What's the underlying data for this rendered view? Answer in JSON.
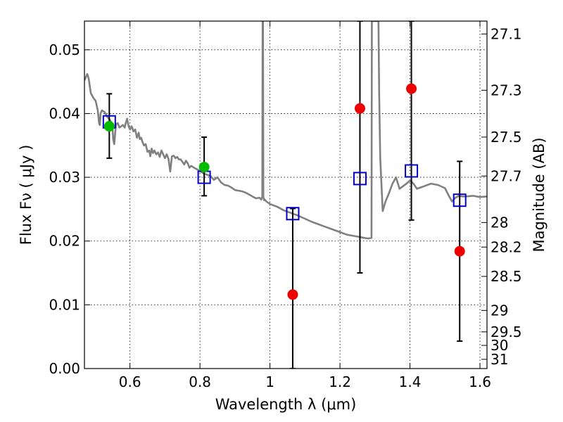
{
  "chart_data": {
    "type": "scatter",
    "title": "",
    "xlabel": "Wavelength  λ (μm)",
    "ylabel": "Flux  Fν  ( μJy )",
    "y2label": "Magnitude (AB)",
    "xlim": [
      0.47,
      1.62
    ],
    "ylim": [
      0.0,
      0.0545
    ],
    "x_ticks": [
      0.6,
      0.8,
      1.0,
      1.2,
      1.4,
      1.6
    ],
    "x_tick_labels": [
      "0.6",
      "0.8",
      "1",
      "1.2",
      "1.4",
      "1.6"
    ],
    "y_ticks": [
      0.0,
      0.01,
      0.02,
      0.03,
      0.04,
      0.05
    ],
    "y_tick_labels": [
      "0.00",
      "0.01",
      "0.02",
      "0.03",
      "0.04",
      "0.05"
    ],
    "mag_ticks": [
      27.1,
      27.3,
      27.5,
      27.7,
      28,
      28.2,
      28.5,
      29,
      29.5,
      30,
      31
    ],
    "mag_tick_labels": [
      "27.1",
      "27.3",
      "27.5",
      "27.7",
      "28",
      "28.2",
      "28.5",
      "29",
      "29.5",
      "30",
      "31"
    ],
    "grid": true,
    "colors": {
      "model": "#808080",
      "model_fluxes": "#0000cc",
      "detections": "#00bb00",
      "nondetections": "#ee0000",
      "errorbars": "#000000"
    },
    "series": [
      {
        "name": "model spectrum",
        "kind": "line",
        "x": [
          0.47,
          0.478,
          0.482,
          0.488,
          0.495,
          0.502,
          0.508,
          0.512,
          0.514,
          0.516,
          0.52,
          0.528,
          0.535,
          0.54,
          0.545,
          0.55,
          0.552,
          0.555,
          0.56,
          0.565,
          0.57,
          0.575,
          0.58,
          0.585,
          0.588,
          0.592,
          0.596,
          0.6,
          0.605,
          0.61,
          0.615,
          0.62,
          0.625,
          0.628,
          0.632,
          0.636,
          0.64,
          0.645,
          0.65,
          0.655,
          0.658,
          0.662,
          0.666,
          0.67,
          0.675,
          0.68,
          0.685,
          0.69,
          0.695,
          0.7,
          0.705,
          0.71,
          0.715,
          0.72,
          0.725,
          0.73,
          0.735,
          0.74,
          0.745,
          0.75,
          0.755,
          0.76,
          0.765,
          0.77,
          0.775,
          0.78,
          0.79,
          0.8,
          0.81,
          0.82,
          0.83,
          0.84,
          0.85,
          0.86,
          0.87,
          0.88,
          0.89,
          0.9,
          0.91,
          0.92,
          0.93,
          0.94,
          0.95,
          0.96,
          0.97,
          0.975,
          0.978,
          0.979,
          0.98,
          0.981,
          0.983,
          0.985,
          0.99,
          1.0,
          1.02,
          1.04,
          1.06,
          1.08,
          1.1,
          1.12,
          1.14,
          1.16,
          1.18,
          1.2,
          1.22,
          1.24,
          1.26,
          1.28,
          1.29,
          1.291,
          1.3,
          1.305,
          1.31,
          1.312,
          1.315,
          1.322,
          1.33,
          1.34,
          1.35,
          1.36,
          1.37,
          1.38,
          1.39,
          1.4,
          1.41,
          1.42,
          1.43,
          1.44,
          1.46,
          1.48,
          1.5,
          1.51,
          1.52,
          1.53,
          1.54,
          1.55,
          1.56,
          1.58,
          1.6,
          1.62
        ],
        "y": [
          0.0452,
          0.0462,
          0.0455,
          0.0432,
          0.0425,
          0.042,
          0.0405,
          0.0384,
          0.0382,
          0.04,
          0.0405,
          0.0402,
          0.0395,
          0.0392,
          0.0388,
          0.038,
          0.036,
          0.0352,
          0.0383,
          0.0385,
          0.0378,
          0.038,
          0.0382,
          0.0378,
          0.0385,
          0.0392,
          0.038,
          0.0375,
          0.038,
          0.0372,
          0.0375,
          0.0362,
          0.037,
          0.036,
          0.0362,
          0.0355,
          0.035,
          0.0352,
          0.034,
          0.0342,
          0.0333,
          0.0345,
          0.0338,
          0.0342,
          0.0336,
          0.0339,
          0.0332,
          0.0342,
          0.0336,
          0.033,
          0.0336,
          0.0329,
          0.0309,
          0.0333,
          0.0334,
          0.033,
          0.0332,
          0.0328,
          0.0328,
          0.0324,
          0.032,
          0.0326,
          0.0322,
          0.0315,
          0.0318,
          0.0316,
          0.0313,
          0.031,
          0.0306,
          0.0304,
          0.0302,
          0.0296,
          0.03,
          0.0292,
          0.0288,
          0.0287,
          0.0284,
          0.028,
          0.0279,
          0.0278,
          0.0276,
          0.0273,
          0.027,
          0.0267,
          0.0268,
          0.0265,
          0.027,
          0.0545,
          0.0545,
          0.027,
          0.0264,
          0.0265,
          0.0262,
          0.0258,
          0.0254,
          0.0248,
          0.0244,
          0.024,
          0.0235,
          0.023,
          0.0226,
          0.0222,
          0.0218,
          0.0214,
          0.021,
          0.0208,
          0.0206,
          0.0204,
          0.0205,
          0.0545,
          0.0545,
          0.0545,
          0.0545,
          0.043,
          0.033,
          0.0247,
          0.0262,
          0.0275,
          0.029,
          0.03,
          0.0282,
          0.0286,
          0.029,
          0.0295,
          0.029,
          0.0282,
          0.0284,
          0.0286,
          0.029,
          0.0288,
          0.0283,
          0.0272,
          0.0262,
          0.0268,
          0.0271,
          0.027,
          0.027,
          0.0271,
          0.0269,
          0.027
        ]
      },
      {
        "name": "model band fluxes",
        "kind": "open-square",
        "x": [
          0.541,
          0.812,
          1.065,
          1.257,
          1.404,
          1.542
        ],
        "y": [
          0.0387,
          0.03,
          0.0243,
          0.0298,
          0.031,
          0.0264
        ]
      },
      {
        "name": "detections",
        "kind": "filled-circle",
        "x": [
          0.541,
          0.812
        ],
        "y": [
          0.038,
          0.0316
        ],
        "yerr_low": [
          0.033,
          0.0271
        ],
        "yerr_high": [
          0.0431,
          0.0363
        ]
      },
      {
        "name": "non-detections",
        "kind": "filled-circle",
        "x": [
          1.065,
          1.257,
          1.404,
          1.542
        ],
        "y": [
          0.0116,
          0.0408,
          0.0439,
          0.0184
        ],
        "yerr_low": [
          0.0,
          0.015,
          0.0233,
          0.0043
        ],
        "yerr_high": [
          0.0251,
          0.0545,
          0.0545,
          0.0325
        ]
      }
    ]
  }
}
